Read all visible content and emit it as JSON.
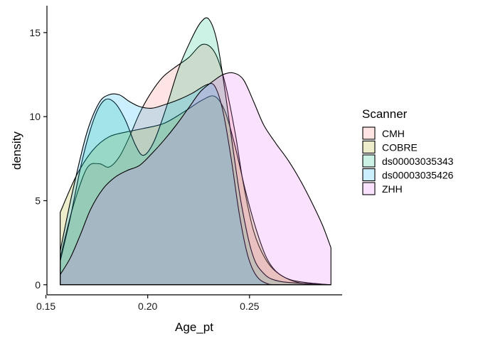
{
  "chart_data": {
    "type": "area",
    "subtype": "density",
    "title": "",
    "xlabel": "Age_pt",
    "ylabel": "density",
    "xlim": [
      0.1505,
      0.2955
    ],
    "ylim": [
      -0.6,
      16.6
    ],
    "x_ticks": [
      0.15,
      0.2,
      0.25
    ],
    "x_tick_labels": [
      "0.15",
      "0.20",
      "0.25"
    ],
    "y_ticks": [
      0,
      5,
      10,
      15
    ],
    "y_tick_labels": [
      "0",
      "5",
      "10",
      "15"
    ],
    "grid": false,
    "legend": {
      "title": "Scanner",
      "position": "right"
    },
    "series": [
      {
        "name": "CMH",
        "fill": "#F8766D",
        "stroke": "#000000",
        "points": [
          [
            0.157,
            1.6
          ],
          [
            0.163,
            4.5
          ],
          [
            0.17,
            6.9
          ],
          [
            0.176,
            7.2
          ],
          [
            0.181,
            7.0
          ],
          [
            0.186,
            7.6
          ],
          [
            0.191,
            8.8
          ],
          [
            0.196,
            10.2
          ],
          [
            0.201,
            11.3
          ],
          [
            0.207,
            12.3
          ],
          [
            0.213,
            12.9
          ],
          [
            0.22,
            13.5
          ],
          [
            0.227,
            14.3
          ],
          [
            0.233,
            13.8
          ],
          [
            0.238,
            12.0
          ],
          [
            0.243,
            9.0
          ],
          [
            0.247,
            6.0
          ],
          [
            0.252,
            3.2
          ],
          [
            0.258,
            1.5
          ],
          [
            0.265,
            0.6
          ],
          [
            0.275,
            0.1
          ],
          [
            0.29,
            0.0
          ]
        ]
      },
      {
        "name": "COBRE",
        "fill": "#A3A500",
        "stroke": "#000000",
        "points": [
          [
            0.157,
            4.3
          ],
          [
            0.165,
            6.5
          ],
          [
            0.173,
            8.0
          ],
          [
            0.181,
            8.8
          ],
          [
            0.19,
            9.1
          ],
          [
            0.198,
            9.3
          ],
          [
            0.208,
            9.6
          ],
          [
            0.218,
            10.3
          ],
          [
            0.227,
            11.0
          ],
          [
            0.233,
            11.2
          ],
          [
            0.238,
            10.3
          ],
          [
            0.243,
            8.2
          ],
          [
            0.248,
            5.6
          ],
          [
            0.253,
            3.4
          ],
          [
            0.258,
            1.7
          ],
          [
            0.263,
            0.8
          ],
          [
            0.27,
            0.3
          ],
          [
            0.28,
            0.1
          ],
          [
            0.29,
            0.0
          ]
        ]
      },
      {
        "name": "ds00003035343",
        "fill": "#00BF7D",
        "stroke": "#000000",
        "points": [
          [
            0.157,
            1.4
          ],
          [
            0.162,
            4.0
          ],
          [
            0.168,
            7.5
          ],
          [
            0.174,
            10.0
          ],
          [
            0.179,
            11.0
          ],
          [
            0.184,
            10.8
          ],
          [
            0.189,
            9.8
          ],
          [
            0.194,
            8.3
          ],
          [
            0.198,
            7.7
          ],
          [
            0.203,
            8.5
          ],
          [
            0.209,
            10.5
          ],
          [
            0.215,
            12.8
          ],
          [
            0.221,
            14.5
          ],
          [
            0.226,
            15.6
          ],
          [
            0.23,
            15.8
          ],
          [
            0.234,
            14.5
          ],
          [
            0.238,
            11.5
          ],
          [
            0.242,
            8.0
          ],
          [
            0.246,
            4.8
          ],
          [
            0.251,
            2.0
          ],
          [
            0.256,
            0.8
          ],
          [
            0.265,
            0.2
          ],
          [
            0.29,
            0.0
          ]
        ]
      },
      {
        "name": "ds00003035426",
        "fill": "#00B0F6",
        "stroke": "#000000",
        "points": [
          [
            0.157,
            2.0
          ],
          [
            0.163,
            5.5
          ],
          [
            0.17,
            9.0
          ],
          [
            0.176,
            10.8
          ],
          [
            0.181,
            11.3
          ],
          [
            0.186,
            11.3
          ],
          [
            0.191,
            10.9
          ],
          [
            0.196,
            10.6
          ],
          [
            0.202,
            10.5
          ],
          [
            0.208,
            10.7
          ],
          [
            0.215,
            11.0
          ],
          [
            0.222,
            11.4
          ],
          [
            0.229,
            11.9
          ],
          [
            0.233,
            11.8
          ],
          [
            0.237,
            10.3
          ],
          [
            0.241,
            7.5
          ],
          [
            0.245,
            4.2
          ],
          [
            0.249,
            1.8
          ],
          [
            0.253,
            0.6
          ],
          [
            0.258,
            0.1
          ],
          [
            0.265,
            0.0
          ],
          [
            0.29,
            0.0
          ]
        ]
      },
      {
        "name": "ZHH",
        "fill": "#E76BF3",
        "stroke": "#000000",
        "points": [
          [
            0.157,
            0.6
          ],
          [
            0.162,
            1.6
          ],
          [
            0.167,
            3.0
          ],
          [
            0.172,
            4.5
          ],
          [
            0.178,
            5.7
          ],
          [
            0.184,
            6.4
          ],
          [
            0.19,
            6.8
          ],
          [
            0.196,
            7.1
          ],
          [
            0.202,
            7.8
          ],
          [
            0.208,
            8.6
          ],
          [
            0.214,
            9.5
          ],
          [
            0.22,
            10.5
          ],
          [
            0.226,
            11.5
          ],
          [
            0.232,
            12.1
          ],
          [
            0.237,
            12.5
          ],
          [
            0.242,
            12.6
          ],
          [
            0.247,
            12.2
          ],
          [
            0.252,
            10.9
          ],
          [
            0.257,
            9.5
          ],
          [
            0.263,
            8.4
          ],
          [
            0.269,
            7.4
          ],
          [
            0.275,
            6.2
          ],
          [
            0.281,
            4.8
          ],
          [
            0.286,
            3.5
          ],
          [
            0.29,
            2.2
          ]
        ]
      }
    ]
  }
}
